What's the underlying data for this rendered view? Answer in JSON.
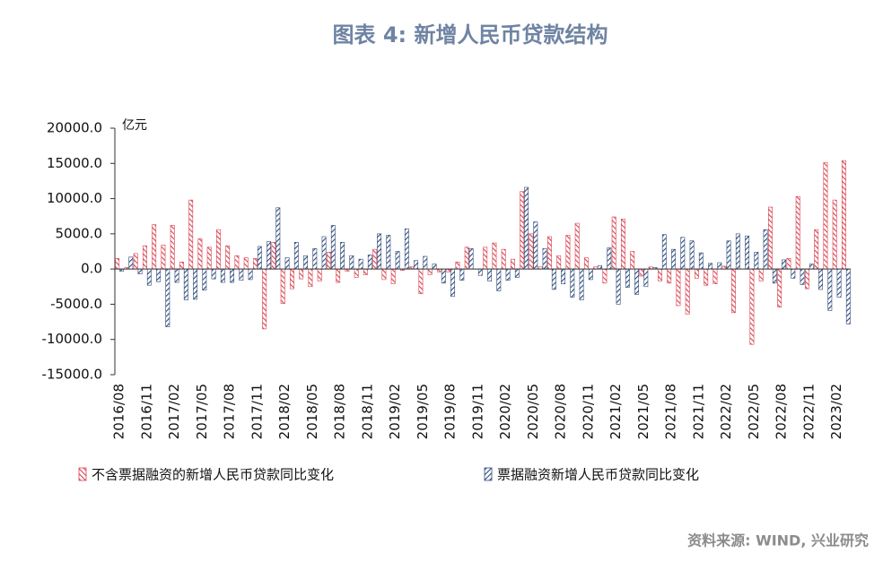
{
  "chart_data": {
    "type": "bar",
    "title": "图表 4:  新增人民币贷款结构",
    "y_label": "亿元",
    "source": "资料来源: WIND, 兴业研究",
    "legend": "bottom",
    "ylim": [
      -15000,
      20000
    ],
    "yticks": [
      {
        "value": -15000,
        "label": "-15000.0"
      },
      {
        "value": -10000,
        "label": "-10000.0"
      },
      {
        "value": -5000,
        "label": "-5000.0"
      },
      {
        "value": 0,
        "label": "0.0"
      },
      {
        "value": 5000,
        "label": "5000.0"
      },
      {
        "value": 10000,
        "label": "10000.0"
      },
      {
        "value": 15000,
        "label": "15000.0"
      },
      {
        "value": 20000,
        "label": "20000.0"
      }
    ],
    "categories": [
      "2016/08",
      null,
      null,
      "2016/11",
      null,
      null,
      "2017/02",
      null,
      null,
      "2017/05",
      null,
      null,
      "2017/08",
      null,
      null,
      "2017/11",
      null,
      null,
      "2018/02",
      null,
      null,
      "2018/05",
      null,
      null,
      "2018/08",
      null,
      null,
      "2018/11",
      null,
      null,
      "2019/02",
      null,
      null,
      "2019/05",
      null,
      null,
      "2019/08",
      null,
      null,
      "2019/11",
      null,
      null,
      "2020/02",
      null,
      null,
      "2020/05",
      null,
      null,
      "2020/08",
      null,
      null,
      "2020/11",
      null,
      null,
      "2021/02",
      null,
      null,
      "2021/05",
      null,
      null,
      "2021/08",
      null,
      null,
      "2021/11",
      null,
      null,
      "2022/02",
      null,
      null,
      "2022/05",
      null,
      null,
      "2022/08",
      null,
      null,
      "2022/11",
      null,
      null,
      "2023/02",
      null
    ],
    "series": [
      {
        "name": "不含票据融资的新增人民币贷款同比变化",
        "color": "#d9414f",
        "values": [
          1500,
          200,
          2200,
          3300,
          6300,
          3400,
          6200,
          1000,
          9800,
          4300,
          3100,
          5600,
          3300,
          1900,
          1600,
          1500,
          -8500,
          3800,
          -4900,
          -2800,
          -1400,
          -2500,
          -1700,
          2400,
          -1900,
          -300,
          -1200,
          -800,
          2800,
          -1500,
          -2100,
          -200,
          300,
          -3500,
          -800,
          -400,
          -400,
          1000,
          3100,
          0,
          3100,
          3700,
          2800,
          1400,
          11000,
          5000,
          300,
          4600,
          1900,
          4800,
          6500,
          1600,
          300,
          -2000,
          7400,
          7100,
          2500,
          -1000,
          300,
          -1700,
          -2000,
          -5200,
          -6400,
          -1300,
          -2300,
          -2100,
          400,
          -6200,
          0,
          -10700,
          -1700,
          8800,
          -5400,
          1500,
          10300,
          -2800,
          5600,
          15100,
          9800,
          15400
        ]
      },
      {
        "name": "票据融资新增人民币贷款同比变化",
        "color": "#2e4a7a",
        "values": [
          -300,
          1700,
          -700,
          -2300,
          -1800,
          -8200,
          -1900,
          -4400,
          -4300,
          -3000,
          -1400,
          -1900,
          -1900,
          -1600,
          -1500,
          3200,
          3900,
          8700,
          1600,
          3800,
          1900,
          2900,
          4600,
          6200,
          3800,
          1900,
          1400,
          2000,
          5000,
          4800,
          2500,
          5700,
          1200,
          1800,
          700,
          -2000,
          -3900,
          -1600,
          2900,
          -900,
          -1700,
          -3100,
          -1600,
          -1200,
          11600,
          6700,
          2900,
          -2900,
          -2100,
          -4000,
          -4400,
          -1500,
          500,
          3000,
          -5000,
          -2600,
          -3600,
          -2500,
          200,
          4900,
          2800,
          4500,
          4000,
          2300,
          800,
          900,
          4000,
          5000,
          4700,
          2400,
          5600,
          -2000,
          1300,
          -1300,
          -2200,
          700,
          -2900,
          -5900,
          -4000,
          -7800
        ]
      }
    ]
  }
}
